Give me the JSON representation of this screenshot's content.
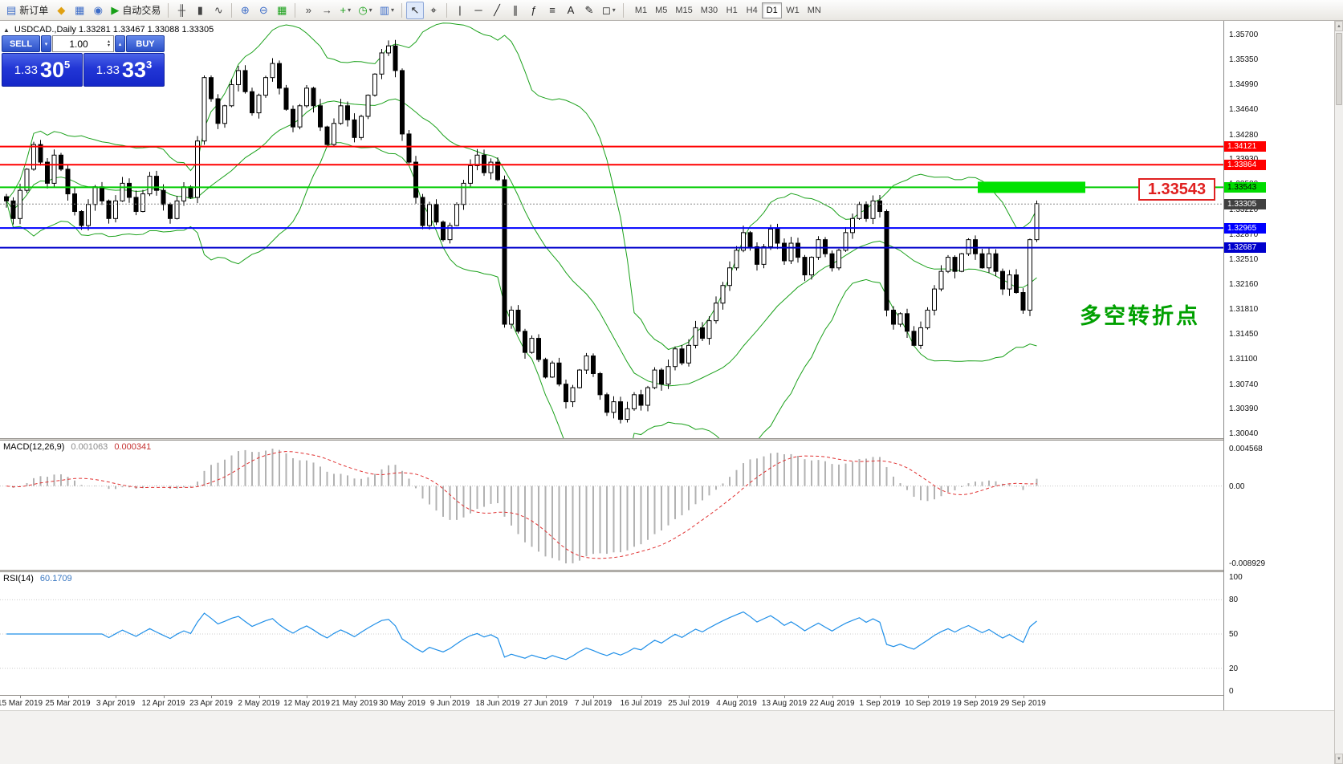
{
  "toolbar": {
    "new_order_label": "新订单",
    "autotrading_label": "自动交易",
    "buttons": [
      {
        "name": "new-order-button",
        "glyph": "▤",
        "color": "#3c6cc8",
        "label": "新订单"
      },
      {
        "name": "profiles-button",
        "glyph": "◆",
        "color": "#e0a010"
      },
      {
        "name": "charts-window-button",
        "glyph": "▦",
        "color": "#3c6cc8"
      },
      {
        "name": "data-window-button",
        "glyph": "◉",
        "color": "#3c6cc8"
      },
      {
        "name": "autotrading-button",
        "glyph": "▶",
        "color": "#18a018",
        "label": "自动交易"
      },
      {
        "sep": true
      },
      {
        "name": "ohlc-bars-button",
        "glyph": "╫",
        "color": "#444"
      },
      {
        "name": "candlestick-button",
        "glyph": "▮",
        "color": "#444"
      },
      {
        "name": "line-chart-button",
        "glyph": "∿",
        "color": "#444"
      },
      {
        "sep": true
      },
      {
        "name": "zoom-in-button",
        "glyph": "⊕",
        "color": "#3c6cc8"
      },
      {
        "name": "zoom-out-button",
        "glyph": "⊖",
        "color": "#3c6cc8"
      },
      {
        "name": "tile-windows-button",
        "glyph": "▦",
        "color": "#18a018"
      },
      {
        "sep": true
      },
      {
        "name": "auto-scroll-button",
        "glyph": "»",
        "color": "#444"
      },
      {
        "name": "chart-shift-button",
        "glyph": "→",
        "color": "#444"
      },
      {
        "name": "indicators-button",
        "glyph": "+",
        "color": "#18a018",
        "dropdown": true
      },
      {
        "name": "periods-button",
        "glyph": "◷",
        "color": "#18a018",
        "dropdown": true
      },
      {
        "name": "templates-button",
        "glyph": "▥",
        "color": "#3c6cc8",
        "dropdown": true
      },
      {
        "sep": true
      },
      {
        "name": "cursor-button",
        "glyph": "↖",
        "color": "#222",
        "active": true
      },
      {
        "name": "crosshair-button",
        "glyph": "⌖",
        "color": "#222"
      },
      {
        "sep": true
      },
      {
        "name": "vertical-line-button",
        "glyph": "|",
        "color": "#222"
      },
      {
        "name": "horizontal-line-button",
        "glyph": "─",
        "color": "#222"
      },
      {
        "name": "trendline-button",
        "glyph": "╱",
        "color": "#222"
      },
      {
        "name": "channel-button",
        "glyph": "∥",
        "color": "#222"
      },
      {
        "name": "fibonacci-button",
        "glyph": "ƒ",
        "color": "#222"
      },
      {
        "name": "levels-button",
        "glyph": "≡",
        "color": "#222"
      },
      {
        "name": "text-button",
        "glyph": "A",
        "color": "#222"
      },
      {
        "name": "label-button",
        "glyph": "✎",
        "color": "#222"
      },
      {
        "name": "shapes-button",
        "glyph": "◻",
        "color": "#222",
        "dropdown": true
      },
      {
        "sep": true
      }
    ],
    "timeframes": [
      "M1",
      "M5",
      "M15",
      "M30",
      "H1",
      "H4",
      "D1",
      "W1",
      "MN"
    ],
    "active_timeframe": "D1"
  },
  "main_chart": {
    "header_text": "USDCAD.,Daily  1.33281 1.33467 1.33088 1.33305",
    "hlines": [
      {
        "price": "1.34121",
        "color": "#ff0000",
        "tag_bg": "#ff0000",
        "tag_fg": "#ffffff"
      },
      {
        "price": "1.33864",
        "color": "#ff0000",
        "tag_bg": "#ff0000",
        "tag_fg": "#ffffff"
      },
      {
        "price": "1.33543",
        "color": "#00cc00",
        "tag_bg": "#00dc00",
        "tag_fg": "#000000"
      },
      {
        "price": "1.32965",
        "color": "#0000ff",
        "tag_bg": "#0000ff",
        "tag_fg": "#ffffff"
      },
      {
        "price": "1.32687",
        "color": "#0000cc",
        "tag_bg": "#0000cc",
        "tag_fg": "#ffffff"
      }
    ],
    "current_price": "1.33305",
    "current_price_tag_bg": "#404040",
    "highlight_rect": {
      "price": "1.33543",
      "color": "#00e200"
    },
    "price_label_box": "1.33543",
    "price_label_color": "#e02020",
    "annotation": "多空转折点",
    "annotation_color": "#00a000"
  },
  "trade_panel": {
    "sell_label": "SELL",
    "buy_label": "BUY",
    "volume": "1.00",
    "sell_price_prefix": "1.33",
    "sell_price_big": "30",
    "sell_price_sup": "5",
    "buy_price_prefix": "1.33",
    "buy_price_big": "33",
    "buy_price_sup": "3"
  },
  "price_axis": {
    "labels": [
      "1.35700",
      "1.35350",
      "1.34990",
      "1.34640",
      "1.34280",
      "1.33930",
      "1.33580",
      "1.33220",
      "1.32870",
      "1.32510",
      "1.32160",
      "1.31810",
      "1.31450",
      "1.31100",
      "1.30740",
      "1.30390",
      "1.30040"
    ]
  },
  "macd": {
    "title": "MACD(12,26,9)",
    "value1": "0.001063",
    "value2": "0.000341",
    "axis_max": "0.004568",
    "axis_zero": "0.00",
    "axis_min": "-0.008929"
  },
  "rsi": {
    "title": "RSI(14)",
    "value": "60.1709",
    "axis_labels": [
      "100",
      "80",
      "50",
      "20",
      "0"
    ],
    "levels": [
      80,
      50,
      20
    ]
  },
  "date_axis": {
    "ticks": [
      {
        "label": "15 Mar 2019",
        "i": 2
      },
      {
        "label": "25 Mar 2019",
        "i": 9
      },
      {
        "label": "3 Apr 2019",
        "i": 16
      },
      {
        "label": "12 Apr 2019",
        "i": 23
      },
      {
        "label": "23 Apr 2019",
        "i": 30
      },
      {
        "label": "2 May 2019",
        "i": 37
      },
      {
        "label": "12 May 2019",
        "i": 44
      },
      {
        "label": "21 May 2019",
        "i": 51
      },
      {
        "label": "30 May 2019",
        "i": 58
      },
      {
        "label": "9 Jun 2019",
        "i": 65
      },
      {
        "label": "18 Jun 2019",
        "i": 72
      },
      {
        "label": "27 Jun 2019",
        "i": 79
      },
      {
        "label": "7 Jul 2019",
        "i": 86
      },
      {
        "label": "16 Jul 2019",
        "i": 93
      },
      {
        "label": "25 Jul 2019",
        "i": 100
      },
      {
        "label": "4 Aug 2019",
        "i": 107
      },
      {
        "label": "13 Aug 2019",
        "i": 114
      },
      {
        "label": "22 Aug 2019",
        "i": 121
      },
      {
        "label": "1 Sep 2019",
        "i": 128
      },
      {
        "label": "10 Sep 2019",
        "i": 135
      },
      {
        "label": "19 Sep 2019",
        "i": 142
      },
      {
        "label": "29 Sep 2019",
        "i": 149
      }
    ]
  },
  "chart_data": {
    "type": "candlestick",
    "symbol": "USDCAD",
    "timeframe": "Daily",
    "ohlc_display": {
      "open": "1.33281",
      "high": "1.33467",
      "low": "1.33088",
      "close": "1.33305"
    },
    "y_range": [
      1.3004,
      1.357
    ],
    "hline_values": [
      1.34121,
      1.33864,
      1.33543,
      1.32965,
      1.32687
    ],
    "overlays": [
      {
        "type": "bollinger_bands",
        "period": 20,
        "deviation": 2,
        "color": "#1ba11b"
      }
    ],
    "indicators": [
      {
        "type": "macd",
        "params": [
          12,
          26,
          9
        ],
        "displayed_values": [
          0.001063,
          0.000341
        ],
        "axis": [
          0.004568,
          0.0,
          -0.008929
        ]
      },
      {
        "type": "rsi",
        "params": [
          14
        ],
        "displayed_value": 60.1709,
        "axis": [
          100,
          80,
          50,
          20,
          0
        ]
      }
    ],
    "closes": [
      1.3335,
      1.331,
      1.335,
      1.338,
      1.3415,
      1.339,
      1.336,
      1.34,
      1.338,
      1.3345,
      1.332,
      1.33,
      1.333,
      1.3355,
      1.3335,
      1.331,
      1.3335,
      1.336,
      1.334,
      1.332,
      1.3345,
      1.337,
      1.335,
      1.333,
      1.331,
      1.3335,
      1.3355,
      1.334,
      1.342,
      1.351,
      1.348,
      1.3445,
      1.347,
      1.35,
      1.352,
      1.349,
      1.346,
      1.3485,
      1.351,
      1.353,
      1.3495,
      1.3465,
      1.344,
      1.347,
      1.3495,
      1.347,
      1.344,
      1.3415,
      1.3445,
      1.347,
      1.345,
      1.3425,
      1.3455,
      1.3485,
      1.3515,
      1.3545,
      1.3555,
      1.352,
      1.343,
      1.339,
      1.334,
      1.33,
      1.333,
      1.3305,
      1.328,
      1.33,
      1.333,
      1.336,
      1.3385,
      1.34,
      1.3375,
      1.339,
      1.3365,
      1.316,
      1.318,
      1.315,
      1.312,
      1.314,
      1.311,
      1.3085,
      1.3105,
      1.3075,
      1.305,
      1.307,
      1.3095,
      1.3115,
      1.309,
      1.306,
      1.3035,
      1.305,
      1.3025,
      1.304,
      1.306,
      1.3045,
      1.307,
      1.3095,
      1.3075,
      1.31,
      1.3125,
      1.3105,
      1.313,
      1.3155,
      1.314,
      1.3165,
      1.319,
      1.3215,
      1.324,
      1.3265,
      1.329,
      1.327,
      1.3245,
      1.327,
      1.3295,
      1.3275,
      1.325,
      1.3275,
      1.3255,
      1.323,
      1.3255,
      1.328,
      1.326,
      1.324,
      1.3265,
      1.329,
      1.331,
      1.333,
      1.331,
      1.3335,
      1.332,
      1.318,
      1.316,
      1.3175,
      1.315,
      1.313,
      1.3155,
      1.318,
      1.321,
      1.3235,
      1.3255,
      1.3235,
      1.326,
      1.328,
      1.326,
      1.324,
      1.326,
      1.3235,
      1.321,
      1.323,
      1.3205,
      1.318,
      1.328,
      1.3331
    ]
  }
}
